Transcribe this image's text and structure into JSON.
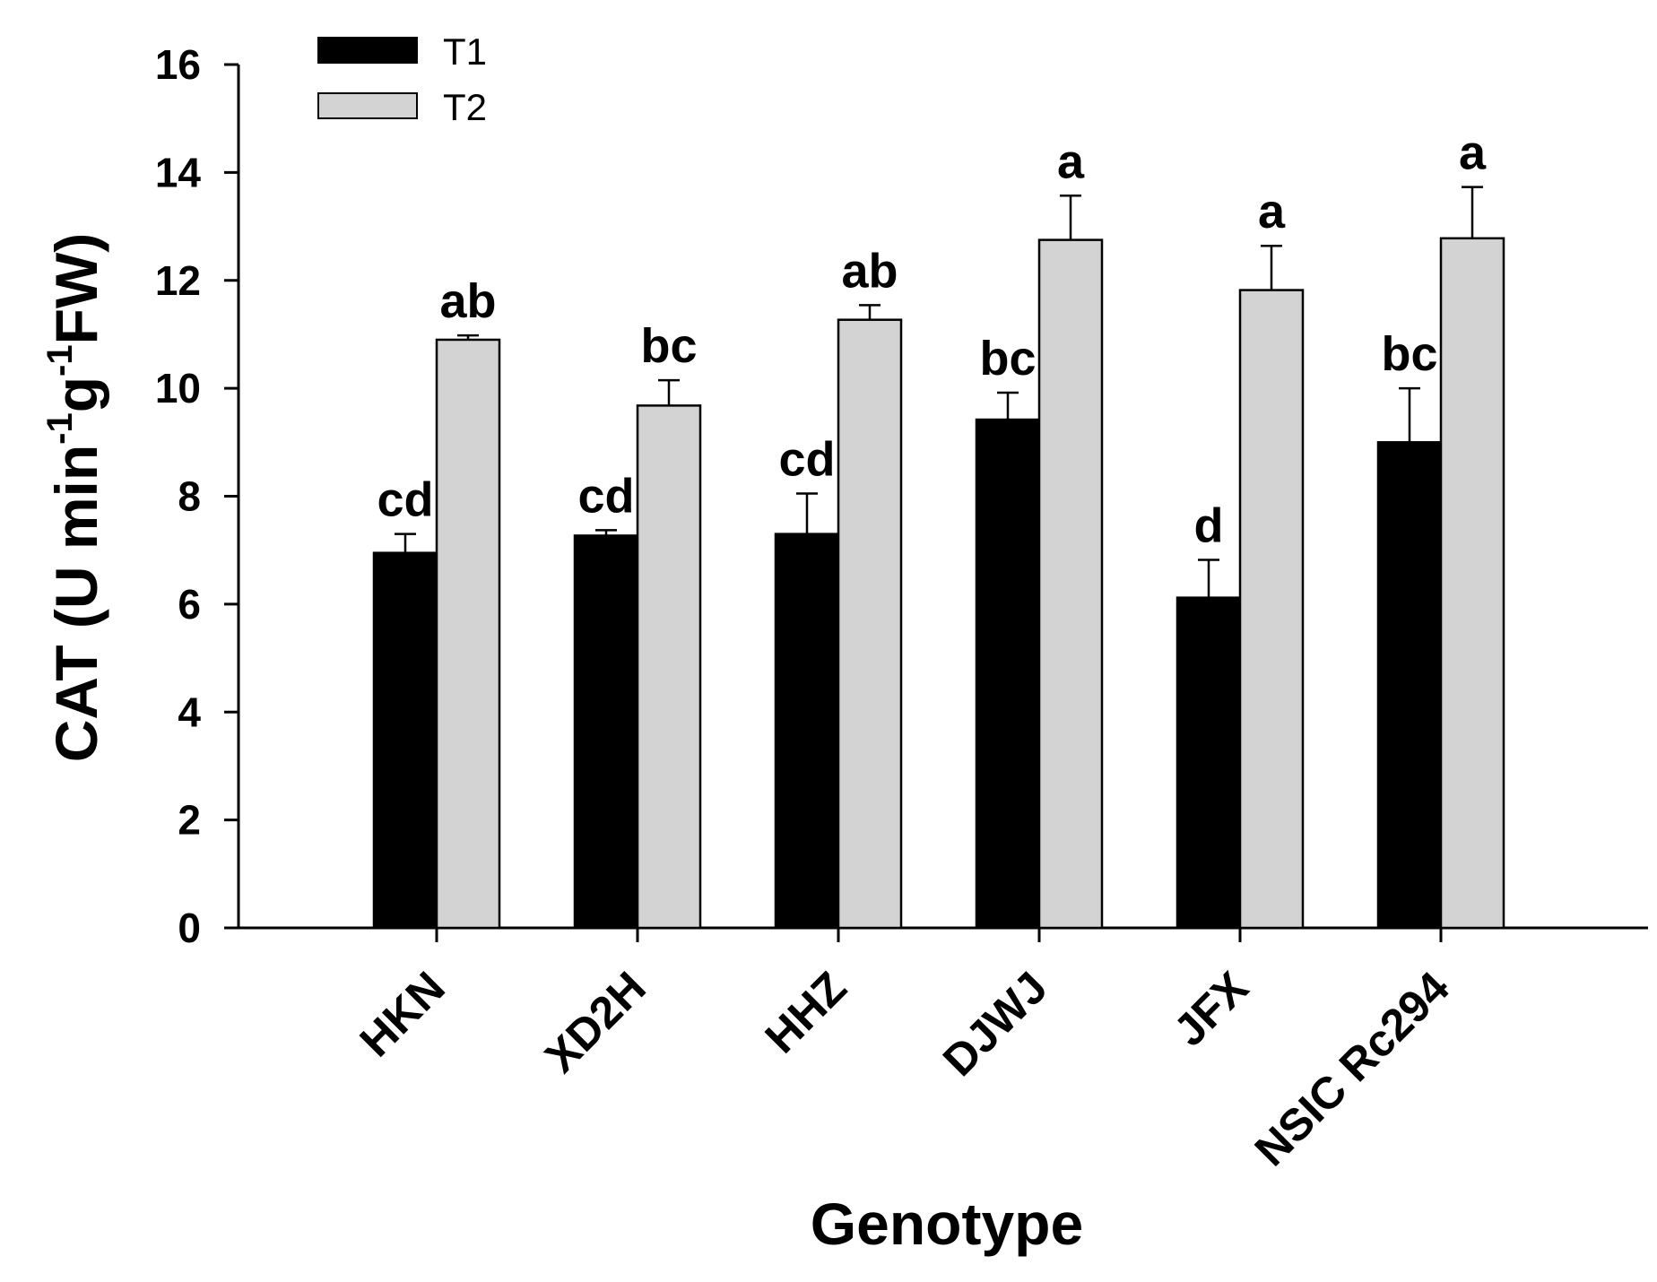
{
  "chart_data": {
    "type": "bar",
    "title": "",
    "xlabel": "Genotype",
    "ylabel": {
      "prefix": "CAT (U min",
      "sup1": "-1",
      "mid": "g",
      "sup2": "-1",
      "suffix": "FW)"
    },
    "ylim": [
      0,
      16
    ],
    "yticks": [
      0,
      2,
      4,
      6,
      8,
      10,
      12,
      14,
      16
    ],
    "categories": [
      "HKN",
      "XD2H",
      "HHZ",
      "DJWJ",
      "JFX",
      "NSIC Rc294"
    ],
    "legend_position": "top-left",
    "series": [
      {
        "name": "T1",
        "color": "#000000",
        "values": [
          6.95,
          7.27,
          7.3,
          9.42,
          6.12,
          9.0
        ],
        "errors": [
          0.35,
          0.1,
          0.75,
          0.5,
          0.7,
          1.0
        ],
        "labels": [
          "cd",
          "cd",
          "cd",
          "bc",
          "d",
          "bc"
        ]
      },
      {
        "name": "T2",
        "color": "#d3d3d3",
        "values": [
          10.9,
          9.68,
          11.27,
          12.75,
          11.82,
          12.78
        ],
        "errors": [
          0.08,
          0.47,
          0.27,
          0.82,
          0.82,
          0.95
        ],
        "labels": [
          "ab",
          "bc",
          "ab",
          "a",
          "a",
          "a"
        ]
      }
    ]
  }
}
